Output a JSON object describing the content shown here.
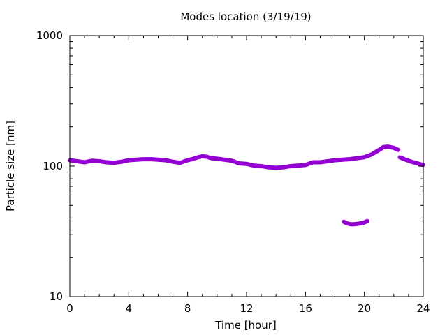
{
  "chart_data": {
    "type": "scatter",
    "title": "Modes location (3/19/19)",
    "xlabel": "Time [hour]",
    "ylabel": "Particle size [nm]",
    "xlim": [
      0,
      24
    ],
    "ylim": [
      10,
      1000
    ],
    "yscale": "log",
    "grid": false,
    "legend": "none",
    "x_ticks": [
      0,
      4,
      8,
      12,
      16,
      20,
      24
    ],
    "y_ticks": [
      10,
      100,
      1000
    ],
    "x_tick_labels": [
      "0",
      "4",
      "8",
      "12",
      "16",
      "20",
      "24"
    ],
    "y_tick_labels": [
      "10",
      "100",
      "1000"
    ],
    "marker_color": "#9400d3",
    "series": [
      {
        "x": [
          0.0,
          0.5,
          1.0,
          1.5,
          2.0,
          2.5,
          3.0,
          3.5,
          4.0,
          4.5,
          5.0,
          5.5,
          6.0,
          6.5,
          7.0,
          7.5,
          8.0,
          8.3,
          8.6,
          9.0,
          9.3,
          9.6,
          10.0,
          10.5,
          11.0,
          11.5,
          12.0,
          12.5,
          13.0,
          13.5,
          14.0,
          14.5,
          15.0,
          15.5,
          16.0,
          16.5,
          17.0,
          17.5,
          18.0,
          18.5,
          19.0,
          19.5,
          20.0,
          20.5,
          21.0,
          21.3,
          21.6,
          22.0,
          22.3
        ],
        "y": [
          111,
          109,
          107,
          110,
          109,
          107,
          106,
          108,
          111,
          112,
          113,
          113,
          112,
          111,
          108,
          106,
          111,
          113,
          116,
          119,
          118,
          115,
          114,
          112,
          110,
          105,
          104,
          101,
          100,
          98,
          97,
          98,
          100,
          101,
          102,
          107,
          107,
          109,
          111,
          112,
          113,
          115,
          117,
          123,
          133,
          140,
          141,
          138,
          133
        ]
      },
      {
        "x": [
          22.4,
          22.8,
          23.2,
          23.6,
          24.0
        ],
        "y": [
          117,
          112,
          108,
          105,
          102
        ]
      },
      {
        "x": [
          18.6,
          18.8,
          19.0,
          19.2,
          19.4,
          19.6,
          19.8,
          20.0,
          20.2
        ],
        "y": [
          37.5,
          36.5,
          36.0,
          35.8,
          36.0,
          36.2,
          36.5,
          37.0,
          38.0
        ]
      }
    ]
  }
}
